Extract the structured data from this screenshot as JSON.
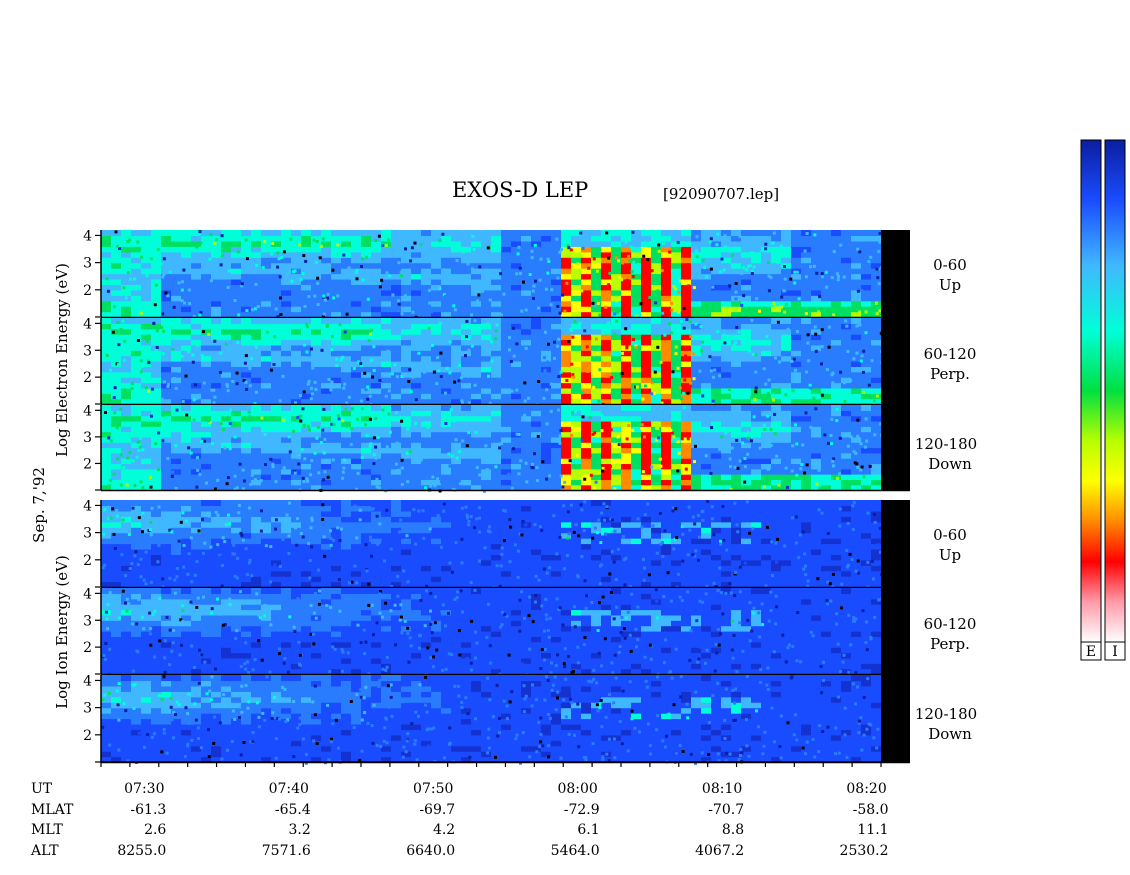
{
  "header": {
    "title": "EXOS-D LEP",
    "file_id": "[92090707.lep]"
  },
  "date_label": "Sep. 7,'92",
  "colorbar": {
    "labels": [
      "E",
      "I"
    ],
    "colors": [
      "#ffffff",
      "#ff9aa8",
      "#ff0000",
      "#ff8a00",
      "#ffff00",
      "#b8ff00",
      "#00e040",
      "#00ffd8",
      "#40b8ff",
      "#1a4cff",
      "#0a1ea0"
    ]
  },
  "electron_group": {
    "ylabel": "Log  Electron  Energy (eV)",
    "panels": [
      {
        "angle": "0-60",
        "direction": "Up"
      },
      {
        "angle": "60-120",
        "direction": "Perp."
      },
      {
        "angle": "120-180",
        "direction": "Down"
      }
    ]
  },
  "ion_group": {
    "ylabel": "Log   Ion   Energy  (eV)",
    "panels": [
      {
        "angle": "0-60",
        "direction": "Up"
      },
      {
        "angle": "60-120",
        "direction": "Perp."
      },
      {
        "angle": "120-180",
        "direction": "Down"
      }
    ]
  },
  "yticks": [
    "4",
    "3",
    "2"
  ],
  "axis_rows": [
    {
      "label": "UT",
      "values": [
        "07:30",
        "07:40",
        "07:50",
        "08:00",
        "08:10",
        "08:20"
      ]
    },
    {
      "label": "MLAT",
      "values": [
        "-61.3",
        "-65.4",
        "-69.7",
        "-72.9",
        "-70.7",
        "-58.0"
      ]
    },
    {
      "label": "MLT",
      "values": [
        "2.6",
        "3.2",
        "4.2",
        "6.1",
        "8.8",
        "11.1"
      ]
    },
    {
      "label": "ALT",
      "values": [
        "8255.0",
        "7571.6",
        "6640.0",
        "5464.0",
        "4067.2",
        "2530.2"
      ]
    }
  ],
  "chart_data": {
    "type": "heatmap",
    "x_range": [
      "07:27",
      "08:21"
    ],
    "y_range_log_eV": [
      1,
      4.2
    ],
    "x_ticks": [
      "07:30",
      "07:40",
      "07:50",
      "08:00",
      "08:10",
      "08:20"
    ],
    "y_ticks": [
      2,
      3,
      4
    ],
    "panels": [
      {
        "species": "Electron",
        "pitch_angle": "0-60",
        "direction": "Up"
      },
      {
        "species": "Electron",
        "pitch_angle": "60-120",
        "direction": "Perp."
      },
      {
        "species": "Electron",
        "pitch_angle": "120-180",
        "direction": "Down"
      },
      {
        "species": "Ion",
        "pitch_angle": "0-60",
        "direction": "Up"
      },
      {
        "species": "Ion",
        "pitch_angle": "60-120",
        "direction": "Perp."
      },
      {
        "species": "Ion",
        "pitch_angle": "120-180",
        "direction": "Down"
      }
    ]
  }
}
